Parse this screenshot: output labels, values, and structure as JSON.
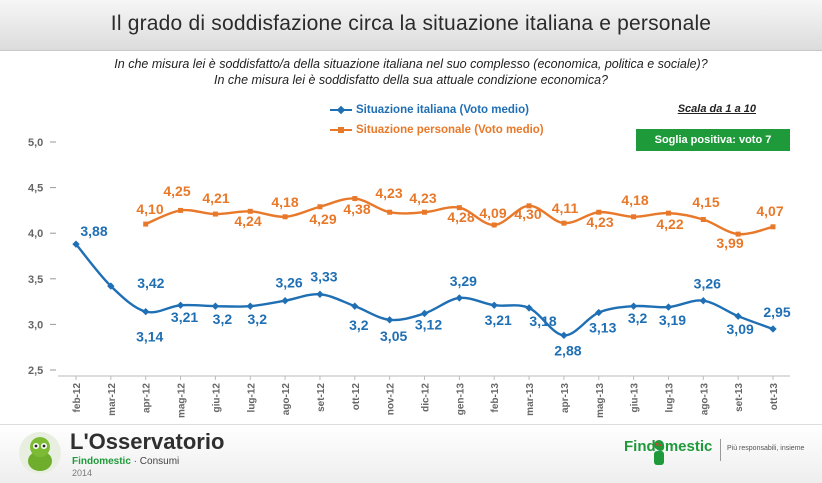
{
  "header": {
    "title": "Il grado di soddisfazione circa la situazione italiana e personale",
    "question1": "In che misura lei è soddisfatto/a della situazione italiana nel suo complesso (economica, politica e sociale)?",
    "question2": "In che misura lei è soddisfatto della sua attuale condizione economica?"
  },
  "notes": {
    "scale": "Scala da 1 a 10",
    "threshold": "Soglia positiva: voto 7"
  },
  "colors": {
    "italian": "#1f6fb4",
    "personal": "#e8792a",
    "threshold": "#1e9a3a"
  },
  "chart_data": {
    "type": "line",
    "title": "Il grado di soddisfazione circa la situazione italiana e personale",
    "categories": [
      "feb-12",
      "mar-12",
      "apr-12",
      "mag-12",
      "giu-12",
      "lug-12",
      "ago-12",
      "set-12",
      "ott-12",
      "nov-12",
      "dic-12",
      "gen-13",
      "feb-13",
      "mar-13",
      "apr-13",
      "mag-13",
      "giu-13",
      "lug-13",
      "ago-13",
      "set-13",
      "ott-13"
    ],
    "ylim": [
      2.5,
      5.0
    ],
    "yticks": [
      "5,0",
      "4,5",
      "4,0",
      "3,5",
      "3,0",
      "2,5"
    ],
    "series": [
      {
        "name": "Situazione italiana (Voto medio)",
        "values": [
          3.88,
          3.42,
          3.14,
          3.21,
          3.2,
          3.2,
          3.26,
          3.33,
          3.2,
          3.05,
          3.12,
          3.29,
          3.21,
          3.18,
          2.88,
          3.13,
          3.2,
          3.19,
          3.26,
          3.09,
          2.95
        ],
        "labels": [
          "3,88",
          "3,42",
          "3,14",
          "3,21",
          "3,2",
          "3,2",
          "3,26",
          "3,33",
          "3,2",
          "3,05",
          "3,12",
          "3,29",
          "3,21",
          "3,18",
          "2,88",
          "3,13",
          "3,2",
          "3,19",
          "3,26",
          "3,09",
          "2,95"
        ],
        "x": [
          "feb-12",
          "mar-12",
          "apr-12",
          "mag-12",
          "giu-12",
          "lug-12",
          "ago-12",
          "set-12",
          "ott-12",
          "nov-12",
          "dic-12",
          "gen-13",
          "feb-13",
          "mar-13",
          "apr-13",
          "mag-13",
          "giu-13",
          "lug-13",
          "ago-13",
          "set-13",
          "ott-13"
        ]
      },
      {
        "name": "Situazione personale (Voto medio)",
        "values": [
          4.1,
          4.25,
          4.21,
          4.24,
          4.18,
          4.29,
          4.38,
          4.23,
          4.23,
          4.28,
          4.09,
          4.3,
          4.11,
          4.23,
          4.18,
          4.22,
          4.15,
          3.99,
          4.07
        ],
        "labels": [
          "4,10",
          "4,25",
          "4,21",
          "4,24",
          "4,18",
          "4,29",
          "4,38",
          "4,23",
          "4,23",
          "4,28",
          "4,09",
          "4,30",
          "4,11",
          "4,23",
          "4,18",
          "4,22",
          "4,15",
          "3,99",
          "4,07"
        ],
        "x": [
          "apr-12",
          "mag-12",
          "giu-12",
          "lug-12",
          "ago-12",
          "set-12",
          "ott-12",
          "nov-12",
          "dic-12",
          "gen-13",
          "feb-13",
          "mar-13",
          "apr-13",
          "mag-13",
          "giu-13",
          "lug-13",
          "ago-13",
          "set-13",
          "ott-13"
        ]
      }
    ],
    "grid": false,
    "legend": "top-center"
  },
  "footer": {
    "brand_name": "L'Osservatorio",
    "brand_sub_main": "Findomestic",
    "brand_sub_extra": " · Consumi",
    "year": "2014",
    "findomestic": "Findomestic",
    "tagline": "Più responsabili, insieme"
  }
}
